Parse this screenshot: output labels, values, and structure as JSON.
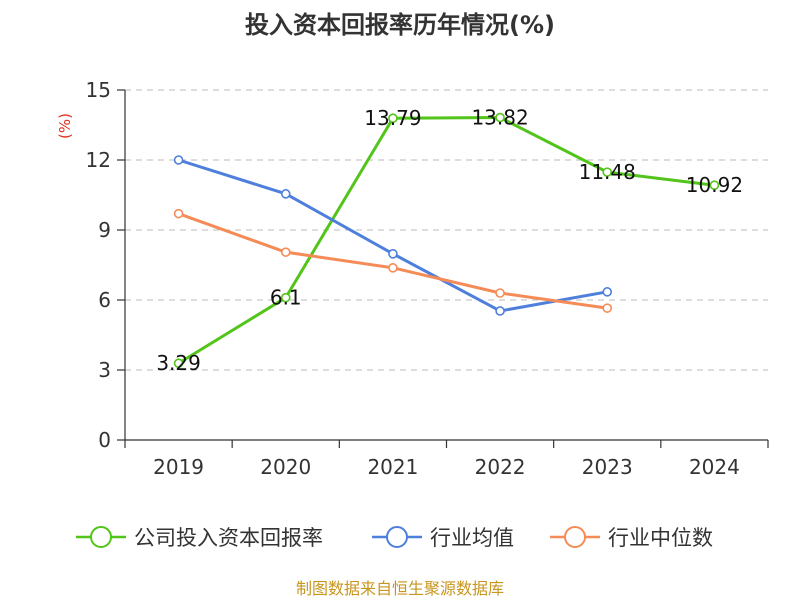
{
  "chart_data": {
    "type": "line",
    "title": "投入资本回报率历年情况(%)",
    "ylabel": "(%)",
    "categories": [
      "2019",
      "2020",
      "2021",
      "2022",
      "2023",
      "2024"
    ],
    "ylim": [
      0,
      15
    ],
    "yticks": [
      0,
      3,
      6,
      9,
      12,
      15
    ],
    "grid": true,
    "legend_position": "bottom",
    "series": [
      {
        "name": "公司投入资本回报率",
        "color": "#52c41a",
        "values": [
          3.29,
          6.1,
          13.79,
          13.82,
          11.48,
          10.92
        ],
        "data_labels": [
          "3.29",
          "6.1",
          "13.79",
          "13.82",
          "11.48",
          "10.92"
        ]
      },
      {
        "name": "行业均值",
        "color": "#4e7fdc",
        "values": [
          12.0,
          10.55,
          7.98,
          5.53,
          6.35,
          null
        ]
      },
      {
        "name": "行业中位数",
        "color": "#f58c58",
        "values": [
          9.7,
          8.05,
          7.38,
          6.3,
          5.65,
          null
        ]
      }
    ],
    "source": "制图数据来自恒生聚源数据库"
  }
}
